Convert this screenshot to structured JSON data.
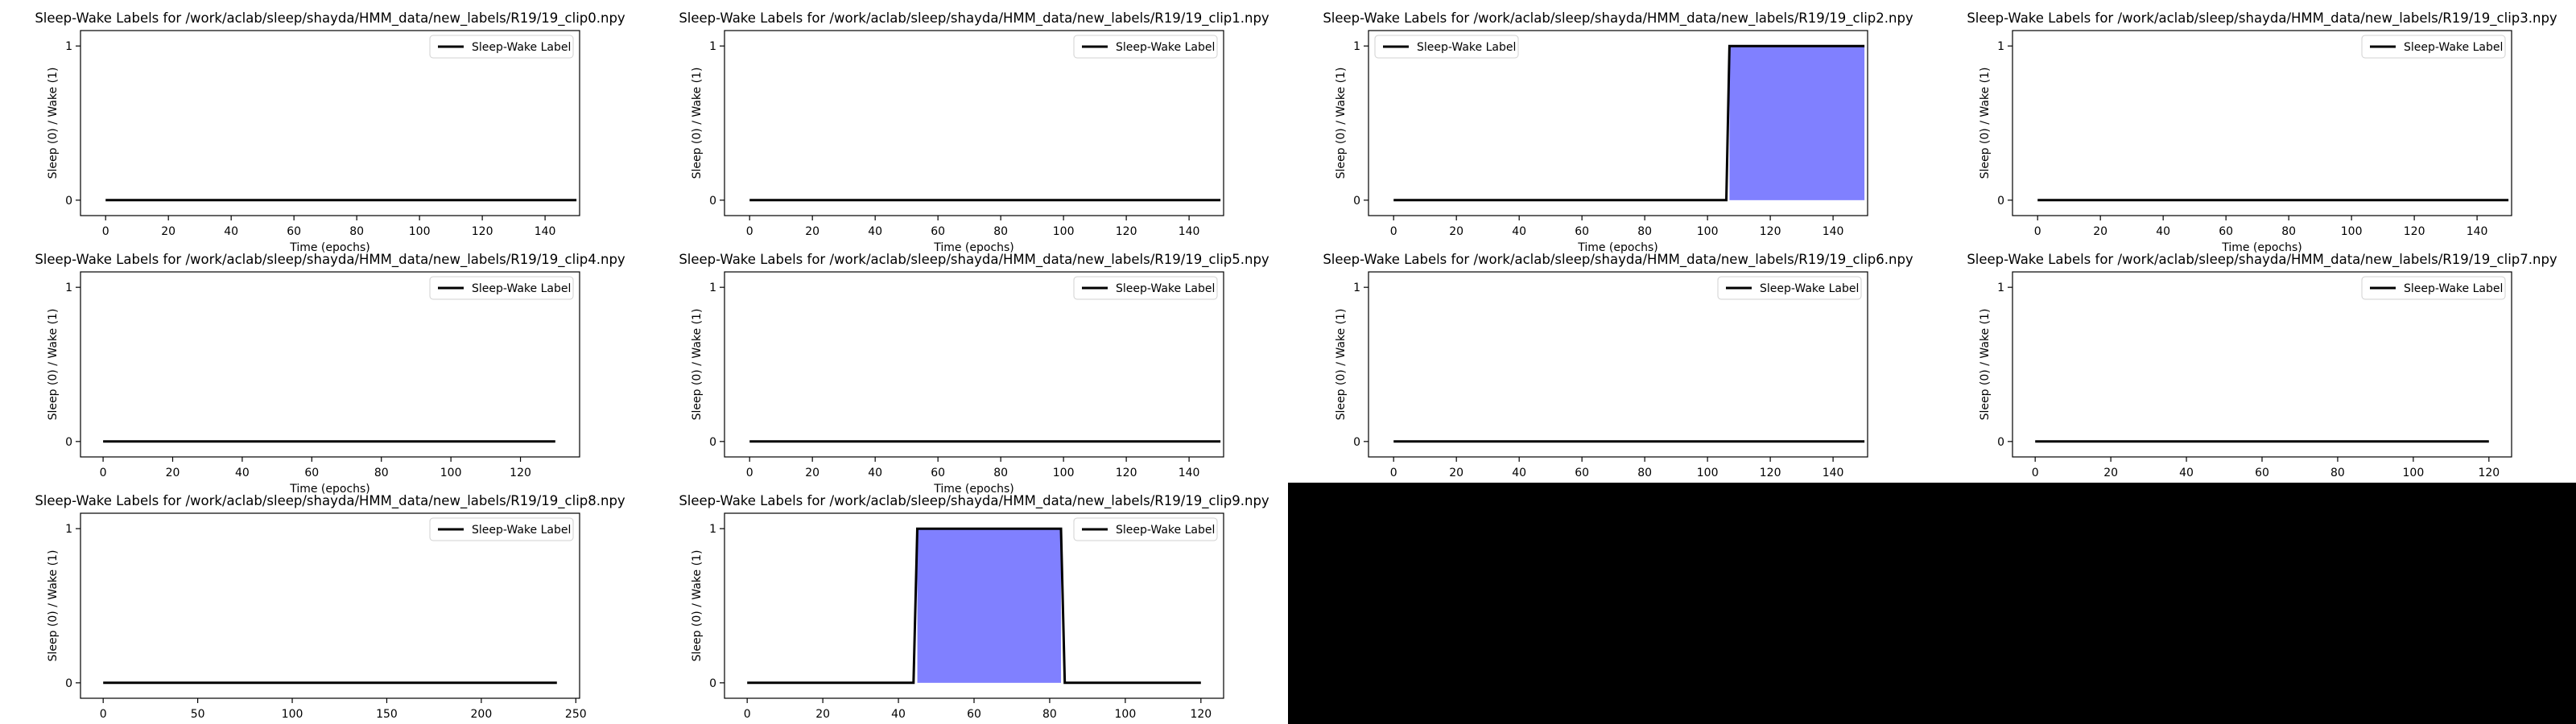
{
  "chart_data": [
    {
      "type": "line",
      "title": "Sleep-Wake Labels for /work/aclab/sleep/shayda/HMM_data/new_labels/R19/19_clip0.npy",
      "ylabel": "Sleep (0) / Wake (1)",
      "xlabel": "Time (epochs)",
      "xlim": [
        -8,
        151
      ],
      "ylim": [
        -0.1,
        1.1
      ],
      "xticks": [
        0,
        20,
        40,
        60,
        80,
        100,
        120,
        140
      ],
      "yticks": [
        0,
        1
      ],
      "legend": "top-right",
      "series": [
        {
          "name": "Sleep-Wake Label",
          "x": [
            0,
            150
          ],
          "y": [
            0,
            0
          ]
        }
      ],
      "fills": []
    },
    {
      "type": "line",
      "title": "Sleep-Wake Labels for /work/aclab/sleep/shayda/HMM_data/new_labels/R19/19_clip1.npy",
      "ylabel": "Sleep (0) / Wake (1)",
      "xlabel": "Time (epochs)",
      "xlim": [
        -8,
        151
      ],
      "ylim": [
        -0.1,
        1.1
      ],
      "xticks": [
        0,
        20,
        40,
        60,
        80,
        100,
        120,
        140
      ],
      "yticks": [
        0,
        1
      ],
      "legend": "top-right",
      "series": [
        {
          "name": "Sleep-Wake Label",
          "x": [
            0,
            150
          ],
          "y": [
            0,
            0
          ]
        }
      ],
      "fills": []
    },
    {
      "type": "line",
      "title": "Sleep-Wake Labels for /work/aclab/sleep/shayda/HMM_data/new_labels/R19/19_clip2.npy",
      "ylabel": "Sleep (0) / Wake (1)",
      "xlabel": "Time (epochs)",
      "xlim": [
        -8,
        151
      ],
      "ylim": [
        -0.1,
        1.1
      ],
      "xticks": [
        0,
        20,
        40,
        60,
        80,
        100,
        120,
        140
      ],
      "yticks": [
        0,
        1
      ],
      "legend": "top-left",
      "series": [
        {
          "name": "Sleep-Wake Label",
          "x": [
            0,
            106,
            107,
            150
          ],
          "y": [
            0,
            0,
            1,
            1
          ]
        }
      ],
      "fills": [
        [
          107,
          150
        ]
      ]
    },
    {
      "type": "line",
      "title": "Sleep-Wake Labels for /work/aclab/sleep/shayda/HMM_data/new_labels/R19/19_clip3.npy",
      "ylabel": "Sleep (0) / Wake (1)",
      "xlabel": "Time (epochs)",
      "xlim": [
        -8,
        151
      ],
      "ylim": [
        -0.1,
        1.1
      ],
      "xticks": [
        0,
        20,
        40,
        60,
        80,
        100,
        120,
        140
      ],
      "yticks": [
        0,
        1
      ],
      "legend": "top-right",
      "series": [
        {
          "name": "Sleep-Wake Label",
          "x": [
            0,
            150
          ],
          "y": [
            0,
            0
          ]
        }
      ],
      "fills": []
    },
    {
      "type": "line",
      "title": "Sleep-Wake Labels for /work/aclab/sleep/shayda/HMM_data/new_labels/R19/19_clip4.npy",
      "ylabel": "Sleep (0) / Wake (1)",
      "xlabel": "Time (epochs)",
      "xlim": [
        -6.5,
        137
      ],
      "ylim": [
        -0.1,
        1.1
      ],
      "xticks": [
        0,
        20,
        40,
        60,
        80,
        100,
        120
      ],
      "yticks": [
        0,
        1
      ],
      "legend": "top-right",
      "series": [
        {
          "name": "Sleep-Wake Label",
          "x": [
            0,
            130
          ],
          "y": [
            0,
            0
          ]
        }
      ],
      "fills": []
    },
    {
      "type": "line",
      "title": "Sleep-Wake Labels for /work/aclab/sleep/shayda/HMM_data/new_labels/R19/19_clip5.npy",
      "ylabel": "Sleep (0) / Wake (1)",
      "xlabel": "Time (epochs)",
      "xlim": [
        -8,
        151
      ],
      "ylim": [
        -0.1,
        1.1
      ],
      "xticks": [
        0,
        20,
        40,
        60,
        80,
        100,
        120,
        140
      ],
      "yticks": [
        0,
        1
      ],
      "legend": "top-right",
      "series": [
        {
          "name": "Sleep-Wake Label",
          "x": [
            0,
            150
          ],
          "y": [
            0,
            0
          ]
        }
      ],
      "fills": []
    },
    {
      "type": "line",
      "title": "Sleep-Wake Labels for /work/aclab/sleep/shayda/HMM_data/new_labels/R19/19_clip6.npy",
      "ylabel": "Sleep (0) / Wake (1)",
      "xlabel": "Time (epochs)",
      "xlim": [
        -8,
        151
      ],
      "ylim": [
        -0.1,
        1.1
      ],
      "xticks": [
        0,
        20,
        40,
        60,
        80,
        100,
        120,
        140
      ],
      "yticks": [
        0,
        1
      ],
      "legend": "top-right",
      "series": [
        {
          "name": "Sleep-Wake Label",
          "x": [
            0,
            150
          ],
          "y": [
            0,
            0
          ]
        }
      ],
      "fills": []
    },
    {
      "type": "line",
      "title": "Sleep-Wake Labels for /work/aclab/sleep/shayda/HMM_data/new_labels/R19/19_clip7.npy",
      "ylabel": "Sleep (0) / Wake (1)",
      "xlabel": "Time (epochs)",
      "xlim": [
        -6,
        126
      ],
      "ylim": [
        -0.1,
        1.1
      ],
      "xticks": [
        0,
        20,
        40,
        60,
        80,
        100,
        120
      ],
      "yticks": [
        0,
        1
      ],
      "legend": "top-right",
      "series": [
        {
          "name": "Sleep-Wake Label",
          "x": [
            0,
            120
          ],
          "y": [
            0,
            0
          ]
        }
      ],
      "fills": []
    },
    {
      "type": "line",
      "title": "Sleep-Wake Labels for /work/aclab/sleep/shayda/HMM_data/new_labels/R19/19_clip8.npy",
      "ylabel": "Sleep (0) / Wake (1)",
      "xlabel": "Time (epochs)",
      "xlim": [
        -12,
        252
      ],
      "ylim": [
        -0.1,
        1.1
      ],
      "xticks": [
        0,
        50,
        100,
        150,
        200,
        250
      ],
      "yticks": [
        0,
        1
      ],
      "legend": "top-right",
      "series": [
        {
          "name": "Sleep-Wake Label",
          "x": [
            0,
            240
          ],
          "y": [
            0,
            0
          ]
        }
      ],
      "fills": []
    },
    {
      "type": "line",
      "title": "Sleep-Wake Labels for /work/aclab/sleep/shayda/HMM_data/new_labels/R19/19_clip9.npy",
      "ylabel": "Sleep (0) / Wake (1)",
      "xlabel": "Time (epochs)",
      "xlim": [
        -6,
        126
      ],
      "ylim": [
        -0.1,
        1.1
      ],
      "xticks": [
        0,
        20,
        40,
        60,
        80,
        100,
        120
      ],
      "yticks": [
        0,
        1
      ],
      "legend": "top-right",
      "series": [
        {
          "name": "Sleep-Wake Label",
          "x": [
            0,
            44,
            45,
            83,
            84,
            120
          ],
          "y": [
            0,
            0,
            1,
            1,
            0,
            0
          ]
        }
      ],
      "fills": [
        [
          45,
          83
        ]
      ]
    }
  ],
  "colors": {
    "line": "#000000",
    "fill": "#8080ff",
    "black_region": "#000000"
  }
}
